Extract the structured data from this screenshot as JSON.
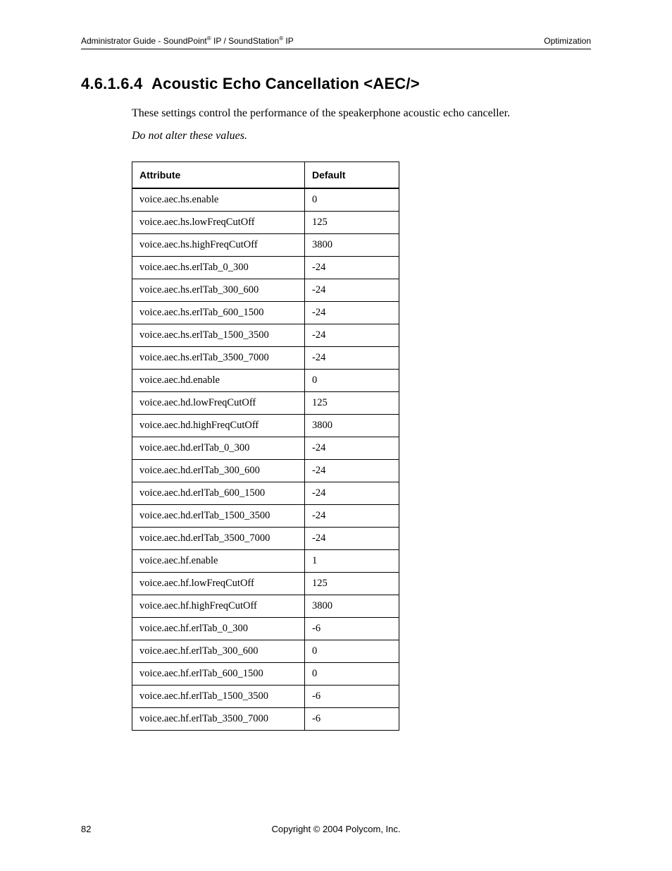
{
  "header": {
    "left_prefix": "Administrator Guide - SoundPoint",
    "left_mid": " IP / SoundStation",
    "left_suffix": " IP",
    "reg_mark": "®",
    "right": "Optimization"
  },
  "section": {
    "number": "4.6.1.6.4",
    "title": "Acoustic Echo Cancellation <AEC/>"
  },
  "paragraphs": {
    "intro": "These settings control the performance of the speakerphone acoustic echo canceller.",
    "warn": "Do not alter these values."
  },
  "table": {
    "columns": [
      "Attribute",
      "Default"
    ],
    "rows": [
      [
        "voice.aec.hs.enable",
        "0"
      ],
      [
        "voice.aec.hs.lowFreqCutOff",
        "125"
      ],
      [
        "voice.aec.hs.highFreqCutOff",
        "3800"
      ],
      [
        "voice.aec.hs.erlTab_0_300",
        "-24"
      ],
      [
        "voice.aec.hs.erlTab_300_600",
        "-24"
      ],
      [
        "voice.aec.hs.erlTab_600_1500",
        "-24"
      ],
      [
        "voice.aec.hs.erlTab_1500_3500",
        "-24"
      ],
      [
        "voice.aec.hs.erlTab_3500_7000",
        "-24"
      ],
      [
        "voice.aec.hd.enable",
        "0"
      ],
      [
        "voice.aec.hd.lowFreqCutOff",
        "125"
      ],
      [
        "voice.aec.hd.highFreqCutOff",
        "3800"
      ],
      [
        "voice.aec.hd.erlTab_0_300",
        "-24"
      ],
      [
        "voice.aec.hd.erlTab_300_600",
        "-24"
      ],
      [
        "voice.aec.hd.erlTab_600_1500",
        "-24"
      ],
      [
        "voice.aec.hd.erlTab_1500_3500",
        "-24"
      ],
      [
        "voice.aec.hd.erlTab_3500_7000",
        "-24"
      ],
      [
        "voice.aec.hf.enable",
        "1"
      ],
      [
        "voice.aec.hf.lowFreqCutOff",
        "125"
      ],
      [
        "voice.aec.hf.highFreqCutOff",
        "3800"
      ],
      [
        "voice.aec.hf.erlTab_0_300",
        "-6"
      ],
      [
        "voice.aec.hf.erlTab_300_600",
        "0"
      ],
      [
        "voice.aec.hf.erlTab_600_1500",
        "0"
      ],
      [
        "voice.aec.hf.erlTab_1500_3500",
        "-6"
      ],
      [
        "voice.aec.hf.erlTab_3500_7000",
        "-6"
      ]
    ]
  },
  "footer": {
    "page": "82",
    "copyright": "Copyright © 2004 Polycom, Inc."
  }
}
